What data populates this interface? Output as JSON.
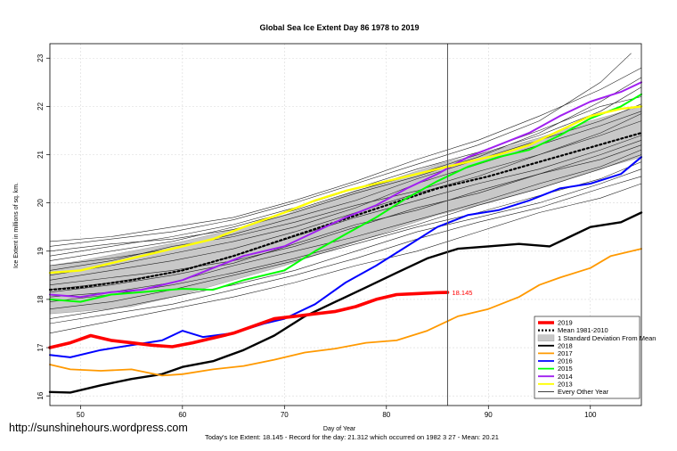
{
  "chart_data": {
    "type": "line",
    "title": "Global Sea Ice Extent Day 86 1978 to 2019",
    "xlabel": "Day of Year",
    "ylabel": "Ice Extent in millions of sq. km.",
    "xlim": [
      47,
      105
    ],
    "ylim": [
      15.8,
      23.3
    ],
    "x_ticks": [
      "50",
      "60",
      "70",
      "80",
      "90",
      "100"
    ],
    "x_tick_values": [
      50,
      60,
      70,
      80,
      90,
      100
    ],
    "y_ticks": [
      "16",
      "17",
      "18",
      "19",
      "20",
      "21",
      "22",
      "23"
    ],
    "y_tick_values": [
      16,
      17,
      18,
      19,
      20,
      21,
      22,
      23
    ],
    "grid": true,
    "legend_position": "bottom-right",
    "current_day": 86,
    "current_value_label": "18.145",
    "footer": "Today's Ice Extent: 18.145  - Record for the day: 21.312 which occurred on 1982 3 27  - Mean: 20.21",
    "watermark": "http://sunshinehours.wordpress.com",
    "legend": [
      {
        "label": "2019",
        "color": "#ff0000",
        "style": "thick"
      },
      {
        "label": "Mean 1981-2010",
        "color": "#000000",
        "style": "dotted"
      },
      {
        "label": "1 Standard Deviation From Mean",
        "color": "#c8c8c8",
        "style": "box"
      },
      {
        "label": "2018",
        "color": "#000000",
        "style": "line"
      },
      {
        "label": "2017",
        "color": "#ff9900",
        "style": "line"
      },
      {
        "label": "2016",
        "color": "#0000ff",
        "style": "line"
      },
      {
        "label": "2015",
        "color": "#00ff00",
        "style": "line"
      },
      {
        "label": "2014",
        "color": "#a020f0",
        "style": "line"
      },
      {
        "label": "2013",
        "color": "#ffff00",
        "style": "line"
      },
      {
        "label": "Every Other Year",
        "color": "#000000",
        "style": "thin"
      }
    ],
    "band": {
      "x": [
        47,
        50,
        55,
        60,
        65,
        70,
        75,
        80,
        85,
        90,
        95,
        100,
        105
      ],
      "upper": [
        18.7,
        18.8,
        19.0,
        19.2,
        19.45,
        19.75,
        20.1,
        20.45,
        20.8,
        21.05,
        21.35,
        21.7,
        22.0
      ],
      "lower": [
        17.7,
        17.75,
        17.85,
        18.1,
        18.4,
        18.7,
        19.05,
        19.4,
        19.75,
        20.0,
        20.3,
        20.65,
        20.95
      ]
    },
    "series": [
      {
        "name": "Mean 1981-2010",
        "color": "#000000",
        "width": 2.2,
        "dash": "2,3",
        "x": [
          47,
          50,
          55,
          60,
          65,
          70,
          75,
          80,
          85,
          90,
          95,
          100,
          105
        ],
        "y": [
          18.2,
          18.25,
          18.4,
          18.6,
          18.9,
          19.25,
          19.6,
          19.95,
          20.3,
          20.55,
          20.85,
          21.15,
          21.45
        ]
      },
      {
        "name": "2018",
        "color": "#000000",
        "width": 2.4,
        "x": [
          47,
          49,
          52,
          55,
          58,
          60,
          63,
          66,
          69,
          72,
          75,
          78,
          81,
          84,
          87,
          90,
          93,
          96,
          100,
          103,
          105
        ],
        "y": [
          16.08,
          16.07,
          16.22,
          16.35,
          16.45,
          16.6,
          16.72,
          16.95,
          17.25,
          17.65,
          17.95,
          18.25,
          18.55,
          18.85,
          19.05,
          19.1,
          19.15,
          19.1,
          19.5,
          19.6,
          19.8
        ]
      },
      {
        "name": "2017",
        "color": "#ff9900",
        "width": 1.8,
        "x": [
          47,
          49,
          52,
          55,
          58,
          60,
          63,
          66,
          69,
          72,
          75,
          78,
          81,
          84,
          87,
          90,
          93,
          95,
          97,
          100,
          102,
          105
        ],
        "y": [
          16.65,
          16.55,
          16.52,
          16.55,
          16.42,
          16.45,
          16.55,
          16.62,
          16.75,
          16.9,
          16.98,
          17.1,
          17.15,
          17.35,
          17.65,
          17.8,
          18.05,
          18.3,
          18.45,
          18.65,
          18.9,
          19.05
        ]
      },
      {
        "name": "2016",
        "color": "#0000ff",
        "width": 2.0,
        "x": [
          47,
          49,
          52,
          55,
          58,
          60,
          62,
          65,
          68,
          70,
          73,
          76,
          79,
          82,
          85,
          88,
          91,
          94,
          97,
          100,
          103,
          105
        ],
        "y": [
          16.85,
          16.8,
          16.95,
          17.05,
          17.15,
          17.35,
          17.22,
          17.3,
          17.5,
          17.6,
          17.9,
          18.35,
          18.7,
          19.1,
          19.5,
          19.75,
          19.85,
          20.05,
          20.3,
          20.4,
          20.6,
          20.95
        ]
      },
      {
        "name": "2015",
        "color": "#00ff00",
        "width": 2.0,
        "x": [
          47,
          50,
          53,
          56,
          60,
          63,
          66,
          70,
          73,
          76,
          79,
          82,
          85,
          88,
          91,
          94,
          97,
          100,
          103,
          105
        ],
        "y": [
          18.0,
          17.95,
          18.1,
          18.15,
          18.22,
          18.2,
          18.4,
          18.6,
          19.0,
          19.35,
          19.7,
          20.1,
          20.45,
          20.75,
          20.95,
          21.1,
          21.4,
          21.75,
          22.0,
          22.25
        ]
      },
      {
        "name": "2014",
        "color": "#a020f0",
        "width": 2.0,
        "x": [
          47,
          50,
          53,
          56,
          60,
          63,
          66,
          70,
          73,
          76,
          79,
          82,
          85,
          88,
          91,
          94,
          97,
          100,
          103,
          105
        ],
        "y": [
          18.1,
          18.05,
          18.15,
          18.2,
          18.4,
          18.65,
          18.9,
          19.1,
          19.4,
          19.7,
          19.95,
          20.3,
          20.6,
          20.95,
          21.2,
          21.45,
          21.8,
          22.1,
          22.3,
          22.5
        ]
      },
      {
        "name": "2013",
        "color": "#ffff00",
        "width": 2.4,
        "x": [
          47,
          50,
          53,
          56,
          60,
          63,
          66,
          70,
          73,
          76,
          79,
          82,
          85,
          88,
          91,
          94,
          97,
          100,
          103,
          105
        ],
        "y": [
          18.55,
          18.6,
          18.75,
          18.9,
          19.1,
          19.25,
          19.5,
          19.8,
          20.05,
          20.25,
          20.4,
          20.55,
          20.7,
          20.85,
          21.0,
          21.2,
          21.5,
          21.8,
          21.95,
          22.0
        ]
      },
      {
        "name": "2019",
        "color": "#ff0000",
        "width": 3.6,
        "x": [
          47,
          49,
          51,
          53,
          55,
          57,
          59,
          61,
          63,
          65,
          67,
          69,
          71,
          73,
          75,
          77,
          79,
          81,
          83,
          85,
          86
        ],
        "y": [
          17.0,
          17.1,
          17.25,
          17.15,
          17.1,
          17.05,
          17.02,
          17.1,
          17.2,
          17.3,
          17.45,
          17.6,
          17.65,
          17.7,
          17.75,
          17.85,
          18.0,
          18.1,
          18.12,
          18.14,
          18.145
        ]
      }
    ],
    "other_years": [
      {
        "x": [
          47,
          53,
          59,
          65,
          71,
          77,
          83,
          89,
          95,
          101,
          105
        ],
        "y": [
          18.9,
          19.1,
          19.3,
          19.55,
          19.9,
          20.3,
          20.7,
          21.05,
          21.5,
          22.0,
          22.2
        ]
      },
      {
        "x": [
          47,
          53,
          59,
          65,
          71,
          77,
          83,
          89,
          95,
          101,
          105
        ],
        "y": [
          18.5,
          18.7,
          18.95,
          19.2,
          19.5,
          19.9,
          20.4,
          20.8,
          21.2,
          21.6,
          21.9
        ]
      },
      {
        "x": [
          47,
          53,
          59,
          65,
          71,
          77,
          83,
          89,
          95,
          101,
          105
        ],
        "y": [
          18.3,
          18.45,
          18.6,
          18.8,
          19.1,
          19.5,
          19.9,
          20.2,
          20.6,
          21.0,
          21.3
        ]
      },
      {
        "x": [
          47,
          53,
          59,
          65,
          71,
          77,
          83,
          89,
          95,
          101,
          105
        ],
        "y": [
          18.05,
          18.15,
          18.35,
          18.7,
          19.0,
          19.3,
          19.65,
          20.0,
          20.4,
          20.75,
          21.1
        ]
      },
      {
        "x": [
          47,
          53,
          59,
          65,
          71,
          77,
          83,
          89,
          95,
          101,
          105
        ],
        "y": [
          17.8,
          17.95,
          18.2,
          18.5,
          18.8,
          19.15,
          19.5,
          19.8,
          20.15,
          20.5,
          20.85
        ]
      },
      {
        "x": [
          47,
          53,
          59,
          65,
          71,
          77,
          83,
          89,
          95,
          101,
          105
        ],
        "y": [
          19.2,
          19.3,
          19.5,
          19.7,
          20.05,
          20.45,
          20.9,
          21.3,
          21.8,
          22.35,
          22.8
        ]
      },
      {
        "x": [
          47,
          53,
          59,
          65,
          71,
          77,
          83,
          89,
          95,
          101,
          105
        ],
        "y": [
          18.7,
          18.85,
          19.05,
          19.35,
          19.7,
          20.05,
          20.5,
          20.9,
          21.3,
          21.7,
          22.05
        ]
      },
      {
        "x": [
          47,
          53,
          59,
          65,
          71,
          77,
          83,
          89,
          95,
          101,
          105
        ],
        "y": [
          17.5,
          17.7,
          17.9,
          18.2,
          18.5,
          18.85,
          19.25,
          19.6,
          19.9,
          20.3,
          20.55
        ]
      },
      {
        "x": [
          47,
          53,
          59,
          65,
          71,
          77,
          83,
          89,
          95,
          101,
          105
        ],
        "y": [
          18.2,
          18.35,
          18.55,
          18.9,
          19.3,
          19.7,
          20.05,
          20.4,
          20.7,
          21.1,
          21.4
        ]
      },
      {
        "x": [
          47,
          53,
          59,
          65,
          71,
          77,
          83,
          89,
          95,
          101,
          105
        ],
        "y": [
          19.0,
          19.15,
          19.25,
          19.45,
          19.8,
          20.2,
          20.55,
          20.95,
          21.45,
          22.1,
          22.6
        ]
      },
      {
        "x": [
          47,
          53,
          59,
          65,
          71,
          77,
          83,
          89,
          95,
          101,
          105
        ],
        "y": [
          17.3,
          17.55,
          17.8,
          18.05,
          18.35,
          18.7,
          19.0,
          19.4,
          19.8,
          20.1,
          20.4
        ]
      },
      {
        "x": [
          47,
          53,
          59,
          65,
          71,
          77,
          83,
          89,
          95,
          101,
          105
        ],
        "y": [
          18.6,
          18.8,
          19.1,
          19.3,
          19.6,
          19.95,
          20.25,
          20.65,
          21.0,
          21.4,
          21.7
        ]
      },
      {
        "x": [
          47,
          53,
          59,
          65,
          71,
          77,
          83,
          89,
          95,
          101,
          105
        ],
        "y": [
          18.4,
          18.6,
          18.8,
          19.05,
          19.4,
          19.8,
          20.2,
          20.55,
          21.0,
          21.45,
          21.85
        ]
      },
      {
        "x": [
          47,
          53,
          59,
          65,
          71,
          77,
          83,
          89,
          95,
          101,
          105
        ],
        "y": [
          17.95,
          18.1,
          18.3,
          18.55,
          18.85,
          19.2,
          19.55,
          19.95,
          20.3,
          20.7,
          21.0
        ]
      },
      {
        "x": [
          47,
          53,
          59,
          65,
          71,
          77,
          83,
          89,
          95,
          101,
          105
        ],
        "y": [
          18.8,
          19.0,
          19.2,
          19.5,
          19.85,
          20.25,
          20.6,
          21.0,
          21.4,
          21.9,
          22.4
        ]
      },
      {
        "x": [
          47,
          53,
          59,
          65,
          71,
          77,
          83,
          89,
          95,
          101,
          104
        ],
        "y": [
          19.1,
          19.25,
          19.4,
          19.65,
          20.0,
          20.4,
          20.8,
          21.2,
          21.7,
          22.5,
          23.1
        ]
      },
      {
        "x": [
          47,
          53,
          59,
          65,
          71,
          77,
          83,
          89,
          95,
          101,
          105
        ],
        "y": [
          17.6,
          17.8,
          18.05,
          18.3,
          18.6,
          19.0,
          19.4,
          19.7,
          20.0,
          20.4,
          20.7
        ]
      },
      {
        "x": [
          47,
          53,
          59,
          65,
          71,
          77,
          83,
          89,
          95,
          101,
          105
        ],
        "y": [
          18.15,
          18.3,
          18.5,
          18.75,
          19.15,
          19.55,
          19.85,
          20.25,
          20.6,
          20.9,
          21.2
        ]
      }
    ]
  }
}
